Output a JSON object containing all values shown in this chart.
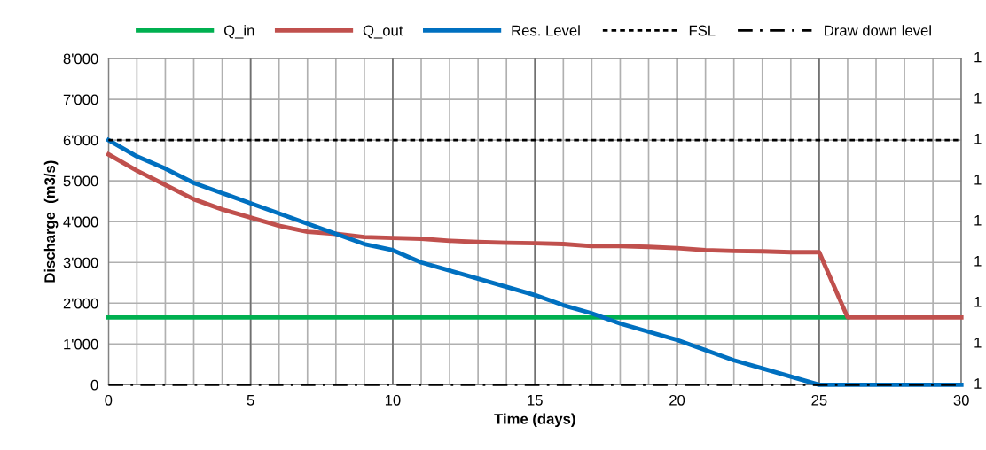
{
  "chart_data": {
    "type": "line",
    "xlabel": "Time (days)",
    "ylabel": "Discharge  (m3/s)",
    "x": [
      0,
      1,
      2,
      3,
      4,
      5,
      6,
      7,
      8,
      9,
      10,
      11,
      12,
      13,
      14,
      15,
      16,
      17,
      18,
      19,
      20,
      21,
      22,
      23,
      24,
      25,
      26,
      27,
      28,
      29,
      30
    ],
    "series": [
      {
        "name": "Q_in",
        "color": "#00b050",
        "values": [
          1650,
          1650,
          1650,
          1650,
          1650,
          1650,
          1650,
          1650,
          1650,
          1650,
          1650,
          1650,
          1650,
          1650,
          1650,
          1650,
          1650,
          1650,
          1650,
          1650,
          1650,
          1650,
          1650,
          1650,
          1650,
          1650,
          1650,
          null,
          null,
          null,
          null
        ]
      },
      {
        "name": "Q_out",
        "color": "#c0504d",
        "values": [
          5650,
          5250,
          4900,
          4550,
          4300,
          4100,
          3900,
          3750,
          3700,
          3620,
          3600,
          3580,
          3530,
          3500,
          3480,
          3470,
          3450,
          3400,
          3400,
          3380,
          3350,
          3300,
          3280,
          3270,
          3250,
          3250,
          1650,
          1650,
          1650,
          1650,
          1650
        ]
      },
      {
        "name": "Res. Level",
        "color": "#0070c0",
        "values": [
          6000,
          5600,
          5300,
          4950,
          4700,
          4450,
          4200,
          3950,
          3700,
          3450,
          3300,
          3000,
          2800,
          2600,
          2400,
          2200,
          1950,
          1750,
          1500,
          1300,
          1100,
          850,
          600,
          400,
          200,
          0,
          0,
          0,
          0,
          0,
          0
        ]
      },
      {
        "name": "FSL",
        "color": "#000000",
        "line_style": "dotted",
        "values": [
          6000,
          6000,
          6000,
          6000,
          6000,
          6000,
          6000,
          6000,
          6000,
          6000,
          6000,
          6000,
          6000,
          6000,
          6000,
          6000,
          6000,
          6000,
          6000,
          6000,
          6000,
          6000,
          6000,
          6000,
          6000,
          6000,
          6000,
          6000,
          6000,
          6000,
          6000
        ]
      },
      {
        "name": "Draw down level",
        "color": "#000000",
        "line_style": "dashdot",
        "values": [
          0,
          0,
          0,
          0,
          0,
          0,
          0,
          0,
          0,
          0,
          0,
          0,
          0,
          0,
          0,
          0,
          0,
          0,
          0,
          0,
          0,
          0,
          0,
          0,
          0,
          0,
          0,
          0,
          0,
          0,
          0
        ]
      }
    ],
    "xlim": [
      0,
      30
    ],
    "xticks": [
      0,
      {
        "value": 1,
        "label": null
      },
      {
        "value": 2,
        "label": null
      },
      {
        "value": 3,
        "label": null
      },
      {
        "value": 4,
        "label": null
      },
      5,
      {
        "value": 6,
        "label": null
      },
      {
        "value": 7,
        "label": null
      },
      {
        "value": 8,
        "label": null
      },
      {
        "value": 9,
        "label": null
      },
      10,
      {
        "value": 11,
        "label": null
      },
      {
        "value": 12,
        "label": null
      },
      {
        "value": 13,
        "label": null
      },
      {
        "value": 14,
        "label": null
      },
      15,
      {
        "value": 16,
        "label": null
      },
      {
        "value": 17,
        "label": null
      },
      {
        "value": 18,
        "label": null
      },
      {
        "value": 19,
        "label": null
      },
      20,
      {
        "value": 21,
        "label": null
      },
      {
        "value": 22,
        "label": null
      },
      {
        "value": 23,
        "label": null
      },
      {
        "value": 24,
        "label": null
      },
      25,
      {
        "value": 26,
        "label": null
      },
      {
        "value": 27,
        "label": null
      },
      {
        "value": 28,
        "label": null
      },
      {
        "value": 29,
        "label": null
      },
      30
    ],
    "ylim": [
      0,
      8000
    ],
    "yticks": [
      0,
      {
        "value": 1000,
        "label": "1'000"
      },
      {
        "value": 2000,
        "label": "2'000"
      },
      {
        "value": 3000,
        "label": "3'000"
      },
      {
        "value": 4000,
        "label": "4'000"
      },
      {
        "value": 5000,
        "label": "5'000"
      },
      {
        "value": 6000,
        "label": "6'000"
      },
      {
        "value": 7000,
        "label": "7'000"
      },
      {
        "value": 8000,
        "label": "8'000"
      }
    ],
    "annotations": [
      "1",
      "1",
      "1",
      "1",
      "1",
      "1",
      "1",
      "1",
      "1"
    ],
    "grid": true,
    "legend": "top",
    "line_style": "solid",
    "marker": "none"
  }
}
